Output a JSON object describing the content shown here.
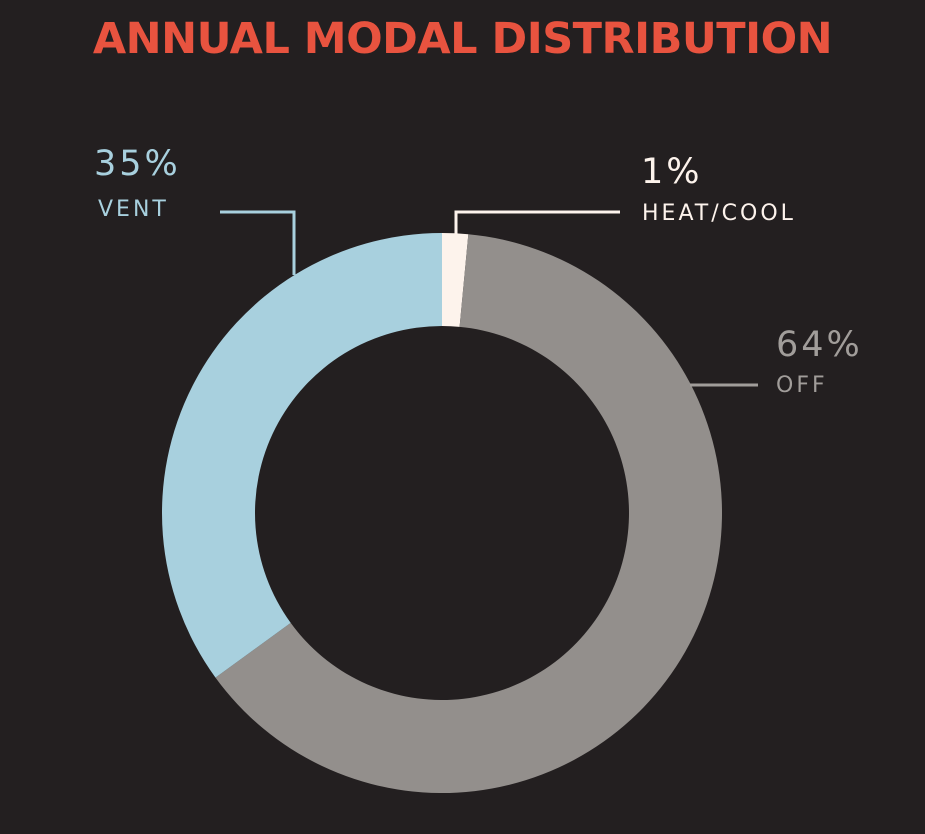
{
  "title": "ANNUAL MODAL DISTRIBUTION",
  "chart_data": {
    "type": "pie",
    "title": "ANNUAL MODAL DISTRIBUTION",
    "donut": true,
    "slices": [
      {
        "label": "HEAT/COOL",
        "percent_label": "1%",
        "value": 1.5,
        "color": "#fdf3ec"
      },
      {
        "label": "OFF",
        "percent_label": "64%",
        "value": 63.5,
        "color": "#938f8c"
      },
      {
        "label": "VENT",
        "percent_label": "35%",
        "value": 35,
        "color": "#a8d0de"
      }
    ]
  }
}
